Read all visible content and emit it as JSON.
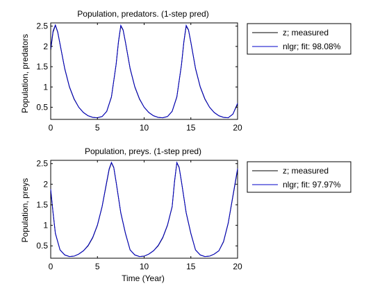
{
  "colors": {
    "measured": "#000000",
    "model": "#0000c8",
    "axes": "#000000",
    "background": "#ffffff"
  },
  "xlabel_shared": "Time (Year)",
  "chart_data": [
    {
      "type": "line",
      "title": "Population, predators. (1-step pred)",
      "xlabel": "",
      "ylabel": "Population, predators",
      "xlim": [
        0,
        20
      ],
      "ylim": [
        0.2,
        2.58
      ],
      "xticks": [
        "0",
        "5",
        "10",
        "15",
        "20"
      ],
      "yticks": [
        "0.5",
        "1",
        "1.5",
        "2",
        "2.5"
      ],
      "grid": false,
      "legend_position": "outside-right",
      "legend": [
        "z; measured",
        "nlgr; fit: 98.08%"
      ],
      "series": [
        {
          "name": "z; measured",
          "x": [
            0,
            0.25,
            0.5,
            0.75,
            1,
            1.5,
            2,
            2.5,
            3,
            3.5,
            4,
            4.5,
            5,
            5.5,
            6,
            6.5,
            7,
            7.25,
            7.5,
            7.75,
            8,
            8.5,
            9,
            9.5,
            10,
            10.5,
            11,
            11.5,
            12,
            12.5,
            13,
            13.5,
            14,
            14.25,
            14.5,
            14.75,
            15,
            15.5,
            16,
            16.5,
            17,
            17.5,
            18,
            18.5,
            19,
            19.5,
            20
          ],
          "y": [
            1.9,
            2.35,
            2.52,
            2.35,
            2.05,
            1.45,
            1.0,
            0.7,
            0.5,
            0.37,
            0.29,
            0.25,
            0.24,
            0.27,
            0.4,
            0.75,
            1.55,
            2.1,
            2.5,
            2.4,
            2.1,
            1.45,
            1.0,
            0.7,
            0.5,
            0.37,
            0.29,
            0.25,
            0.24,
            0.27,
            0.4,
            0.75,
            1.55,
            2.1,
            2.5,
            2.4,
            2.1,
            1.45,
            1.0,
            0.7,
            0.5,
            0.37,
            0.29,
            0.25,
            0.24,
            0.33,
            0.58
          ]
        },
        {
          "name": "nlgr; fit: 98.08%",
          "x": [
            0,
            0.25,
            0.5,
            0.75,
            1,
            1.5,
            2,
            2.5,
            3,
            3.5,
            4,
            4.5,
            5,
            5.5,
            6,
            6.5,
            7,
            7.25,
            7.5,
            7.75,
            8,
            8.5,
            9,
            9.5,
            10,
            10.5,
            11,
            11.5,
            12,
            12.5,
            13,
            13.5,
            14,
            14.25,
            14.5,
            14.75,
            15,
            15.5,
            16,
            16.5,
            17,
            17.5,
            18,
            18.5,
            19,
            19.5,
            20
          ],
          "y": [
            1.95,
            2.38,
            2.53,
            2.36,
            2.06,
            1.46,
            1.01,
            0.71,
            0.5,
            0.37,
            0.29,
            0.25,
            0.24,
            0.27,
            0.4,
            0.76,
            1.56,
            2.12,
            2.52,
            2.41,
            2.11,
            1.46,
            1.01,
            0.71,
            0.5,
            0.37,
            0.29,
            0.25,
            0.24,
            0.27,
            0.4,
            0.76,
            1.56,
            2.12,
            2.52,
            2.41,
            2.11,
            1.46,
            1.01,
            0.71,
            0.5,
            0.37,
            0.29,
            0.25,
            0.24,
            0.33,
            0.6
          ]
        }
      ]
    },
    {
      "type": "line",
      "title": "Population, preys. (1-step pred)",
      "xlabel": "Time (Year)",
      "ylabel": "Population, preys",
      "xlim": [
        0,
        20
      ],
      "ylim": [
        0.2,
        2.58
      ],
      "xticks": [
        "0",
        "5",
        "10",
        "15",
        "20"
      ],
      "yticks": [
        "0.5",
        "1",
        "1.5",
        "2",
        "2.5"
      ],
      "grid": false,
      "legend_position": "outside-right",
      "legend": [
        "z; measured",
        "nlgr; fit: 97.97%"
      ],
      "series": [
        {
          "name": "z; measured",
          "x": [
            0,
            0.25,
            0.5,
            1,
            1.5,
            2,
            2.5,
            3,
            3.5,
            4,
            4.5,
            5,
            5.5,
            6,
            6.25,
            6.5,
            6.75,
            7,
            7.5,
            8,
            8.5,
            9,
            9.5,
            10,
            10.5,
            11,
            11.5,
            12,
            12.5,
            13,
            13.25,
            13.5,
            13.75,
            14,
            14.5,
            15,
            15.5,
            16,
            16.5,
            17,
            17.5,
            18,
            18.5,
            19,
            19.5,
            20
          ],
          "y": [
            1.85,
            1.3,
            0.8,
            0.4,
            0.28,
            0.24,
            0.25,
            0.3,
            0.38,
            0.5,
            0.7,
            1.0,
            1.45,
            2.05,
            2.35,
            2.52,
            2.4,
            2.05,
            1.3,
            0.8,
            0.4,
            0.28,
            0.24,
            0.25,
            0.3,
            0.38,
            0.5,
            0.7,
            1.0,
            1.45,
            2.05,
            2.52,
            2.4,
            2.05,
            1.3,
            0.8,
            0.4,
            0.28,
            0.24,
            0.25,
            0.3,
            0.38,
            0.6,
            1.05,
            1.7,
            2.35
          ]
        },
        {
          "name": "nlgr; fit: 97.97%",
          "x": [
            0,
            0.25,
            0.5,
            1,
            1.5,
            2,
            2.5,
            3,
            3.5,
            4,
            4.5,
            5,
            5.5,
            6,
            6.25,
            6.5,
            6.75,
            7,
            7.5,
            8,
            8.5,
            9,
            9.5,
            10,
            10.5,
            11,
            11.5,
            12,
            12.5,
            13,
            13.25,
            13.5,
            13.75,
            14,
            14.5,
            15,
            15.5,
            16,
            16.5,
            17,
            17.5,
            18,
            18.5,
            19,
            19.5,
            20
          ],
          "y": [
            1.88,
            1.32,
            0.81,
            0.4,
            0.28,
            0.24,
            0.25,
            0.3,
            0.38,
            0.51,
            0.71,
            1.01,
            1.46,
            2.07,
            2.37,
            2.53,
            2.41,
            2.06,
            1.31,
            0.81,
            0.4,
            0.28,
            0.24,
            0.25,
            0.3,
            0.38,
            0.51,
            0.71,
            1.01,
            1.46,
            2.07,
            2.53,
            2.41,
            2.06,
            1.31,
            0.81,
            0.4,
            0.28,
            0.24,
            0.25,
            0.3,
            0.38,
            0.61,
            1.06,
            1.72,
            2.38
          ]
        }
      ]
    }
  ]
}
